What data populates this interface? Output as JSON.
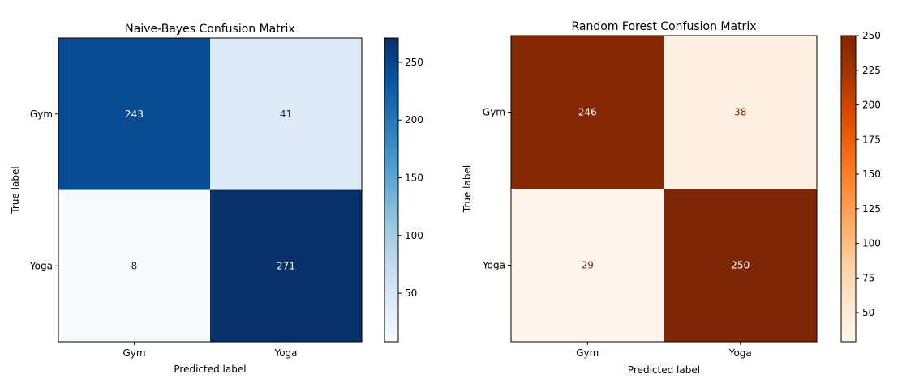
{
  "chart_data": [
    {
      "type": "heatmap",
      "title": "Naive-Bayes Confusion Matrix",
      "xlabel": "Predicted label",
      "ylabel": "True label",
      "x_categories": [
        "Gym",
        "Yoga"
      ],
      "y_categories": [
        "Gym",
        "Yoga"
      ],
      "values": [
        [
          243,
          41
        ],
        [
          8,
          271
        ]
      ],
      "colormap": "Blues",
      "colorbar": {
        "ticks": [
          50,
          100,
          150,
          200,
          250
        ],
        "range": [
          8,
          271
        ]
      }
    },
    {
      "type": "heatmap",
      "title": "Random Forest Confusion Matrix",
      "xlabel": "Predicted label",
      "ylabel": "True label",
      "x_categories": [
        "Gym",
        "Yoga"
      ],
      "y_categories": [
        "Gym",
        "Yoga"
      ],
      "values": [
        [
          246,
          38
        ],
        [
          29,
          250
        ]
      ],
      "colormap": "Oranges",
      "colorbar": {
        "ticks": [
          50,
          75,
          100,
          125,
          150,
          175,
          200,
          225,
          250
        ],
        "range": [
          29,
          250
        ]
      }
    }
  ]
}
